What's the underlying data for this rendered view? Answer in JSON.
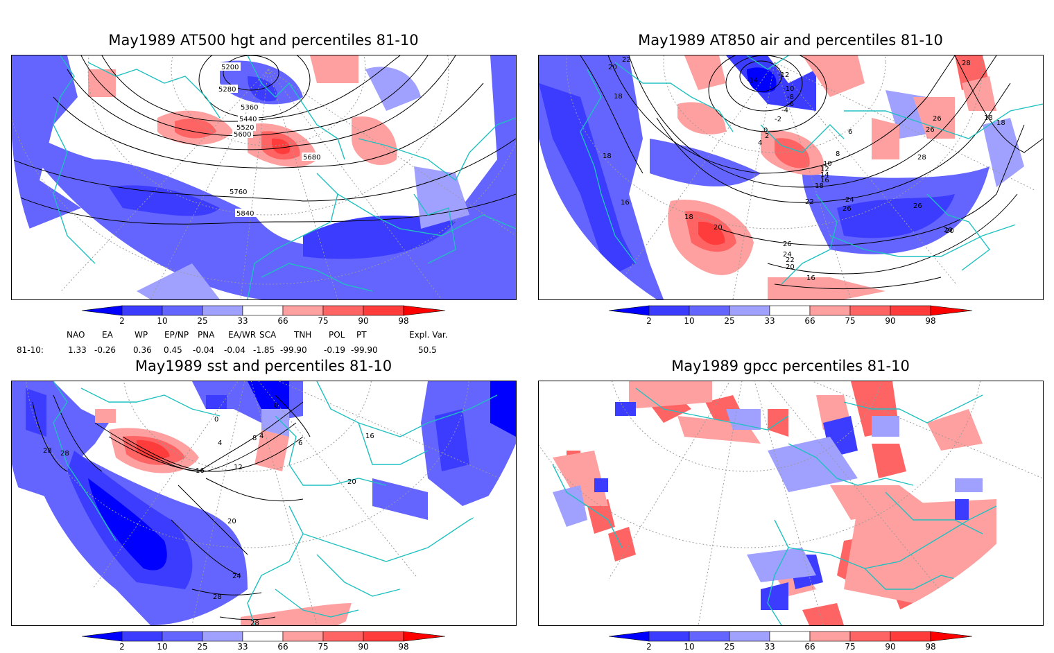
{
  "panels": [
    {
      "id": "p1",
      "title": "May1989 AT500 hgt and percentiles 81-10",
      "contour_labels": [
        "5200",
        "5280",
        "5360",
        "5440",
        "5520",
        "5600",
        "5680",
        "5760",
        "5840"
      ]
    },
    {
      "id": "p2",
      "title": "May1989 AT850 air and percentiles 81-10",
      "contour_labels": [
        "22",
        "20",
        "18",
        "18",
        "16",
        "-14",
        "-12",
        "-10",
        "-8",
        "-6",
        "-4",
        "-2",
        "0",
        "2",
        "4",
        "6",
        "8",
        "10",
        "12",
        "14",
        "16",
        "18",
        "22",
        "24",
        "26",
        "24",
        "26",
        "22",
        "20",
        "18",
        "16",
        "20",
        "18",
        "20",
        "26",
        "26",
        "26",
        "28",
        "28",
        "18",
        "20"
      ]
    },
    {
      "id": "p3",
      "title": "May1989 sst and percentiles 81-10",
      "contour_labels": [
        "0",
        "0",
        "4",
        "4",
        "8",
        "6",
        "12",
        "16",
        "16",
        "20",
        "20",
        "24",
        "28",
        "28",
        "28",
        "28"
      ]
    },
    {
      "id": "p4",
      "title": "May1989 gpcc percentiles 81-10",
      "contour_labels": []
    }
  ],
  "colorbar": {
    "labels": [
      "2",
      "10",
      "25",
      "33",
      "66",
      "75",
      "90",
      "98"
    ],
    "colors": {
      "b1": "#0000ff",
      "b2": "#3c3cff",
      "b3": "#6464ff",
      "b4": "#a0a0ff",
      "w": "#ffffff",
      "r1": "#ffa0a0",
      "r2": "#ff6464",
      "r3": "#ff3c3c",
      "r4": "#ff0000"
    }
  },
  "indices": {
    "headers": [
      "NAO",
      "EA",
      "WP",
      "EP/NP",
      "PNA",
      "EA/WR",
      "SCA",
      "TNH",
      "POL",
      "PT",
      "Expl. Var."
    ],
    "row_label": "81-10:",
    "values": [
      "1.33",
      "-0.26",
      "0.36",
      "0.45",
      "-0.04",
      "-0.04",
      "-1.85",
      "-99.90",
      "-0.19",
      "-99.90",
      "50.5"
    ]
  },
  "map_colors": {
    "coast": "#20c0c0",
    "contour": "#000000",
    "grid": "#9a9a9a"
  }
}
